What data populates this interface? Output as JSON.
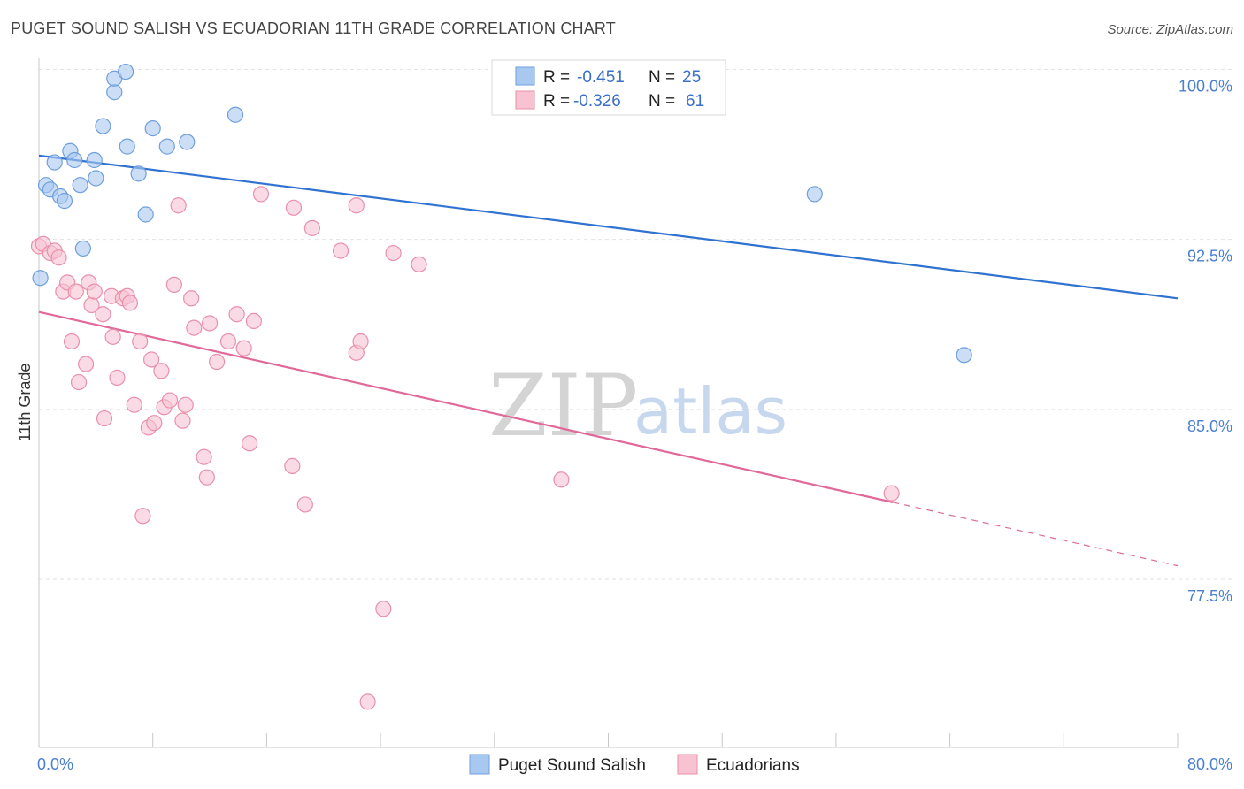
{
  "title": "PUGET SOUND SALISH VS ECUADORIAN 11TH GRADE CORRELATION CHART",
  "source": "Source: ZipAtlas.com",
  "watermark": {
    "zip": "ZIP",
    "atlas": "atlas"
  },
  "chart_data": {
    "type": "scatter",
    "ylabel": "11th Grade",
    "xlim": [
      0,
      80
    ],
    "ylim": [
      70.5,
      101.5
    ],
    "y_ticks": [
      {
        "v": 100,
        "label": "100.0%"
      },
      {
        "v": 92.5,
        "label": "92.5%"
      },
      {
        "v": 85,
        "label": "85.0%"
      },
      {
        "v": 77.5,
        "label": "77.5%"
      }
    ],
    "x_tick_labels": [
      {
        "v": 0,
        "label": "0.0%"
      },
      {
        "v": 80,
        "label": "80.0%"
      }
    ],
    "x_minor_ticks": [
      0,
      8,
      16,
      24,
      32,
      40,
      48,
      56,
      64,
      72,
      80
    ],
    "legend": {
      "r_label": "R =",
      "n_label": "N =",
      "rows": [
        {
          "r": "-0.451",
          "n": "25"
        },
        {
          "r": "-0.326",
          "n": "61"
        }
      ]
    },
    "series": [
      {
        "name": "Puget Sound Salish",
        "color": "#a9c8f0",
        "stroke": "#6f9fdd",
        "line_color": "#2f72d0",
        "trend": {
          "x0": 0,
          "y0": 96.2,
          "x1": 80,
          "y1": 89.9
        },
        "points": [
          [
            0.1,
            90.8
          ],
          [
            0.5,
            94.9
          ],
          [
            0.8,
            94.7
          ],
          [
            1.1,
            95.9
          ],
          [
            1.5,
            94.4
          ],
          [
            1.8,
            94.2
          ],
          [
            2.2,
            96.4
          ],
          [
            2.5,
            96.0
          ],
          [
            2.9,
            94.9
          ],
          [
            3.1,
            92.1
          ],
          [
            3.9,
            96.0
          ],
          [
            4.0,
            95.2
          ],
          [
            4.5,
            97.5
          ],
          [
            5.3,
            99.0
          ],
          [
            5.3,
            99.6
          ],
          [
            6.1,
            99.9
          ],
          [
            6.2,
            96.6
          ],
          [
            7.0,
            95.4
          ],
          [
            7.5,
            93.6
          ],
          [
            8.0,
            97.4
          ],
          [
            9.0,
            96.6
          ],
          [
            10.4,
            96.8
          ],
          [
            13.8,
            98.0
          ],
          [
            54.5,
            94.5
          ],
          [
            65.0,
            87.4
          ]
        ]
      },
      {
        "name": "Ecuadorians",
        "color": "#f7c3d3",
        "stroke": "#ea8fab",
        "line_color": "#e0699a",
        "trend": {
          "x0": 0,
          "y0": 89.3,
          "x1": 60,
          "y1": 80.9
        },
        "trend_dash": {
          "x0": 60,
          "y0": 80.9,
          "x1": 80,
          "y1": 78.1
        },
        "points": [
          [
            0.0,
            92.2
          ],
          [
            0.3,
            92.3
          ],
          [
            0.8,
            91.9
          ],
          [
            1.1,
            92.0
          ],
          [
            1.4,
            91.7
          ],
          [
            1.7,
            90.2
          ],
          [
            2.0,
            90.6
          ],
          [
            2.3,
            88.0
          ],
          [
            2.6,
            90.2
          ],
          [
            2.8,
            86.2
          ],
          [
            3.3,
            87.0
          ],
          [
            3.5,
            90.6
          ],
          [
            3.7,
            89.6
          ],
          [
            3.9,
            90.2
          ],
          [
            4.5,
            89.2
          ],
          [
            4.6,
            84.6
          ],
          [
            5.1,
            90.0
          ],
          [
            5.2,
            88.2
          ],
          [
            5.5,
            86.4
          ],
          [
            5.9,
            89.9
          ],
          [
            6.2,
            90.0
          ],
          [
            6.4,
            89.7
          ],
          [
            6.7,
            85.2
          ],
          [
            7.1,
            88.0
          ],
          [
            7.3,
            80.3
          ],
          [
            7.7,
            84.2
          ],
          [
            7.9,
            87.2
          ],
          [
            8.1,
            84.4
          ],
          [
            8.6,
            86.7
          ],
          [
            8.8,
            85.1
          ],
          [
            9.2,
            85.4
          ],
          [
            9.5,
            90.5
          ],
          [
            9.8,
            94.0
          ],
          [
            10.1,
            84.5
          ],
          [
            10.3,
            85.2
          ],
          [
            10.7,
            89.9
          ],
          [
            10.9,
            88.6
          ],
          [
            11.6,
            82.9
          ],
          [
            11.8,
            82.0
          ],
          [
            12.0,
            88.8
          ],
          [
            12.5,
            87.1
          ],
          [
            13.3,
            88.0
          ],
          [
            13.9,
            89.2
          ],
          [
            14.4,
            87.7
          ],
          [
            14.8,
            83.5
          ],
          [
            15.1,
            88.9
          ],
          [
            15.6,
            94.5
          ],
          [
            17.8,
            82.5
          ],
          [
            17.9,
            93.9
          ],
          [
            18.7,
            80.8
          ],
          [
            19.2,
            93.0
          ],
          [
            21.2,
            92.0
          ],
          [
            22.3,
            94.0
          ],
          [
            22.3,
            87.5
          ],
          [
            22.6,
            88.0
          ],
          [
            23.1,
            72.1
          ],
          [
            24.2,
            76.2
          ],
          [
            24.9,
            91.9
          ],
          [
            26.7,
            91.4
          ],
          [
            36.7,
            81.9
          ],
          [
            59.9,
            81.3
          ]
        ]
      }
    ]
  }
}
